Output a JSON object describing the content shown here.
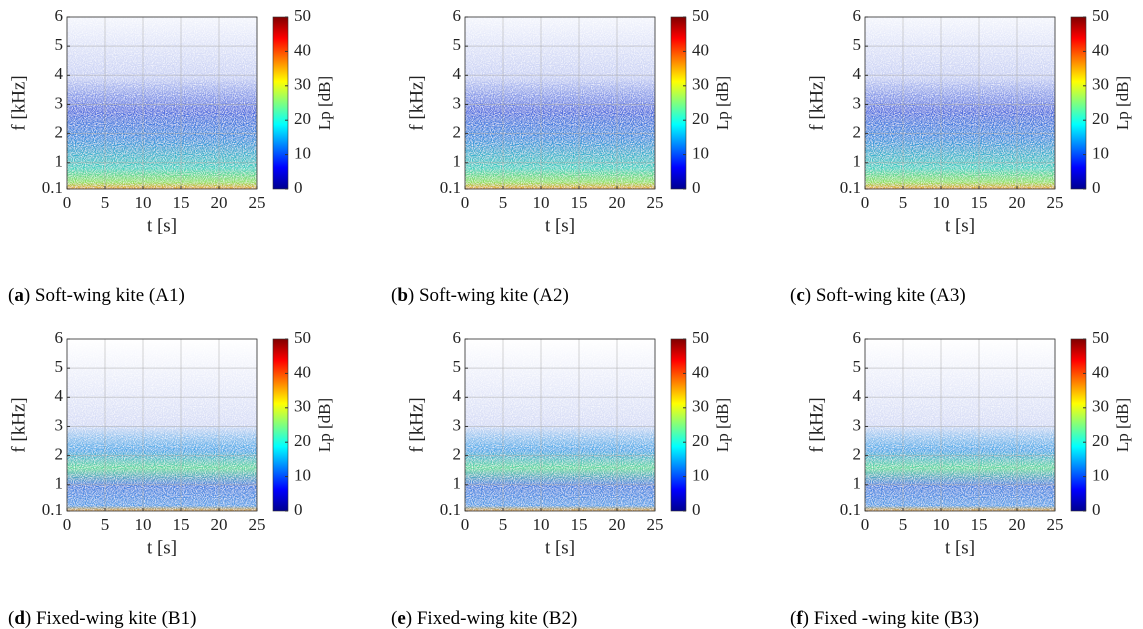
{
  "chart_data": [
    {
      "type": "heatmap",
      "colormap": "jet",
      "grid": true,
      "xlabel": "t [s]",
      "ylabel": "f [kHz]",
      "xlim": [
        0,
        25
      ],
      "xticks": [
        0,
        5,
        10,
        15,
        20,
        25
      ],
      "ylim": [
        0.1,
        6
      ],
      "yticks": [
        0.1,
        1,
        2,
        3,
        4,
        5,
        6
      ],
      "colorbar": {
        "label": "Lp [dB]",
        "lim": [
          0,
          50
        ],
        "ticks": [
          0,
          10,
          20,
          30,
          40,
          50
        ]
      },
      "caption": [
        "(",
        "a",
        ") Soft-wing kite (A1)"
      ]
    },
    {
      "type": "heatmap",
      "colormap": "jet",
      "grid": true,
      "xlabel": "t [s]",
      "ylabel": "f [kHz]",
      "xlim": [
        0,
        25
      ],
      "xticks": [
        0,
        5,
        10,
        15,
        20,
        25
      ],
      "ylim": [
        0.1,
        6
      ],
      "yticks": [
        0.1,
        1,
        2,
        3,
        4,
        5,
        6
      ],
      "colorbar": {
        "label": "Lp [dB]",
        "lim": [
          0,
          50
        ],
        "ticks": [
          0,
          10,
          20,
          30,
          40,
          50
        ]
      },
      "caption": [
        "(",
        "b",
        ") Soft-wing kite (A2)"
      ]
    },
    {
      "type": "heatmap",
      "colormap": "jet",
      "grid": true,
      "xlabel": "t [s]",
      "ylabel": "f [kHz]",
      "xlim": [
        0,
        25
      ],
      "xticks": [
        0,
        5,
        10,
        15,
        20,
        25
      ],
      "ylim": [
        0.1,
        6
      ],
      "yticks": [
        0.1,
        1,
        2,
        3,
        4,
        5,
        6
      ],
      "colorbar": {
        "label": "Lp [dB]",
        "lim": [
          0,
          50
        ],
        "ticks": [
          0,
          10,
          20,
          30,
          40,
          50
        ]
      },
      "caption": [
        "(",
        "c",
        ") Soft-wing kite (A3)"
      ]
    },
    {
      "type": "heatmap",
      "colormap": "jet",
      "grid": true,
      "xlabel": "t [s]",
      "ylabel": "f [kHz]",
      "xlim": [
        0,
        25
      ],
      "xticks": [
        0,
        5,
        10,
        15,
        20,
        25
      ],
      "ylim": [
        0.1,
        6
      ],
      "yticks": [
        0.1,
        1,
        2,
        3,
        4,
        5,
        6
      ],
      "colorbar": {
        "label": "Lp [dB]",
        "lim": [
          0,
          50
        ],
        "ticks": [
          0,
          10,
          20,
          30,
          40,
          50
        ]
      },
      "caption": [
        "(",
        "d",
        ") Fixed-wing kite (B1)"
      ]
    },
    {
      "type": "heatmap",
      "colormap": "jet",
      "grid": true,
      "xlabel": "t [s]",
      "ylabel": "f [kHz]",
      "xlim": [
        0,
        25
      ],
      "xticks": [
        0,
        5,
        10,
        15,
        20,
        25
      ],
      "ylim": [
        0.1,
        6
      ],
      "yticks": [
        0.1,
        1,
        2,
        3,
        4,
        5,
        6
      ],
      "colorbar": {
        "label": "Lp [dB]",
        "lim": [
          0,
          50
        ],
        "ticks": [
          0,
          10,
          20,
          30,
          40,
          50
        ]
      },
      "caption": [
        "(",
        "e",
        ") Fixed-wing kite (B2)"
      ]
    },
    {
      "type": "heatmap",
      "colormap": "jet",
      "grid": true,
      "xlabel": "t [s]",
      "ylabel": "f [kHz]",
      "xlim": [
        0,
        25
      ],
      "xticks": [
        0,
        5,
        10,
        15,
        20,
        25
      ],
      "ylim": [
        0.1,
        6
      ],
      "yticks": [
        0.1,
        1,
        2,
        3,
        4,
        5,
        6
      ],
      "colorbar": {
        "label": "Lp [dB]",
        "lim": [
          0,
          50
        ],
        "ticks": [
          0,
          10,
          20,
          30,
          40,
          50
        ]
      },
      "caption": [
        "(",
        "f",
        ") Fixed -wing kite (B3)"
      ]
    }
  ]
}
